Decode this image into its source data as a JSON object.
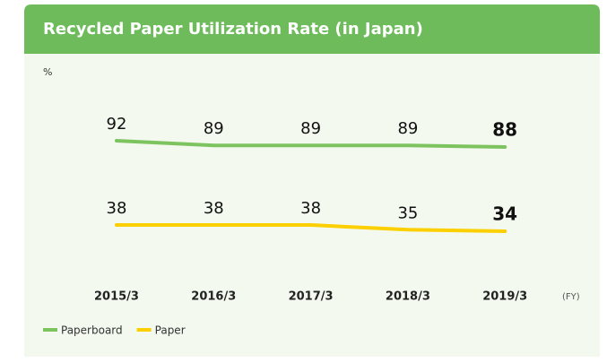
{
  "chart_data": {
    "type": "line",
    "title": "Recycled Paper Utilization Rate (in Japan)",
    "y_unit": "%",
    "x_unit": "(FY)",
    "categories": [
      "2015/3",
      "2016/3",
      "2017/3",
      "2018/3",
      "2019/3"
    ],
    "series": [
      {
        "name": "Paperboard",
        "color": "#7dc460",
        "values": [
          92,
          89,
          89,
          89,
          88
        ]
      },
      {
        "name": "Paper",
        "color": "#fcd000",
        "values": [
          38,
          38,
          38,
          35,
          34
        ]
      }
    ],
    "legend": "bottom-left"
  }
}
